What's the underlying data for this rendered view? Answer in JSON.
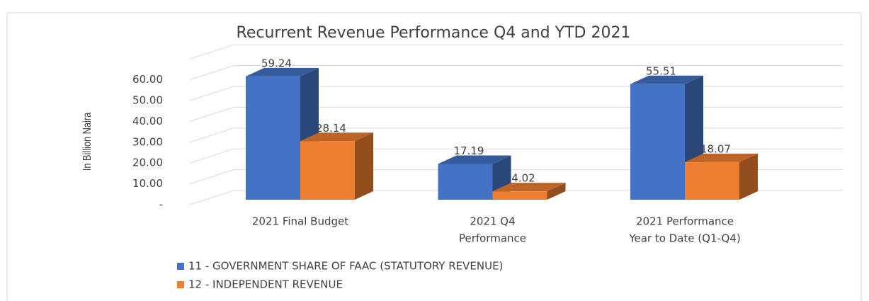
{
  "chart_data": {
    "type": "bar3d",
    "title": "Recurrent Revenue Performance Q4 and YTD 2021",
    "y_label": "In Billion Naira",
    "categories": [
      [
        "2021 Final Budget"
      ],
      [
        "2021 Q4",
        "Performance"
      ],
      [
        "2021 Performance",
        "Year to Date (Q1-Q4)"
      ]
    ],
    "series": [
      {
        "name": "11 - GOVERNMENT SHARE OF FAAC (STATUTORY REVENUE)",
        "color": "#4472c4",
        "values": [
          59.24,
          17.19,
          55.51
        ]
      },
      {
        "name": "12 - INDEPENDENT REVENUE",
        "color": "#ed7d31",
        "values": [
          28.14,
          4.02,
          18.07
        ]
      }
    ],
    "ylim": [
      0,
      70
    ],
    "yticks": [
      {
        "value": 0,
        "label": "-"
      },
      {
        "value": 10,
        "label": "10.00"
      },
      {
        "value": 20,
        "label": "20.00"
      },
      {
        "value": 30,
        "label": "30.00"
      },
      {
        "value": 40,
        "label": "40.00"
      },
      {
        "value": 50,
        "label": "50.00"
      },
      {
        "value": 60,
        "label": "60.00"
      }
    ],
    "grid": true,
    "legend": "bottom"
  }
}
